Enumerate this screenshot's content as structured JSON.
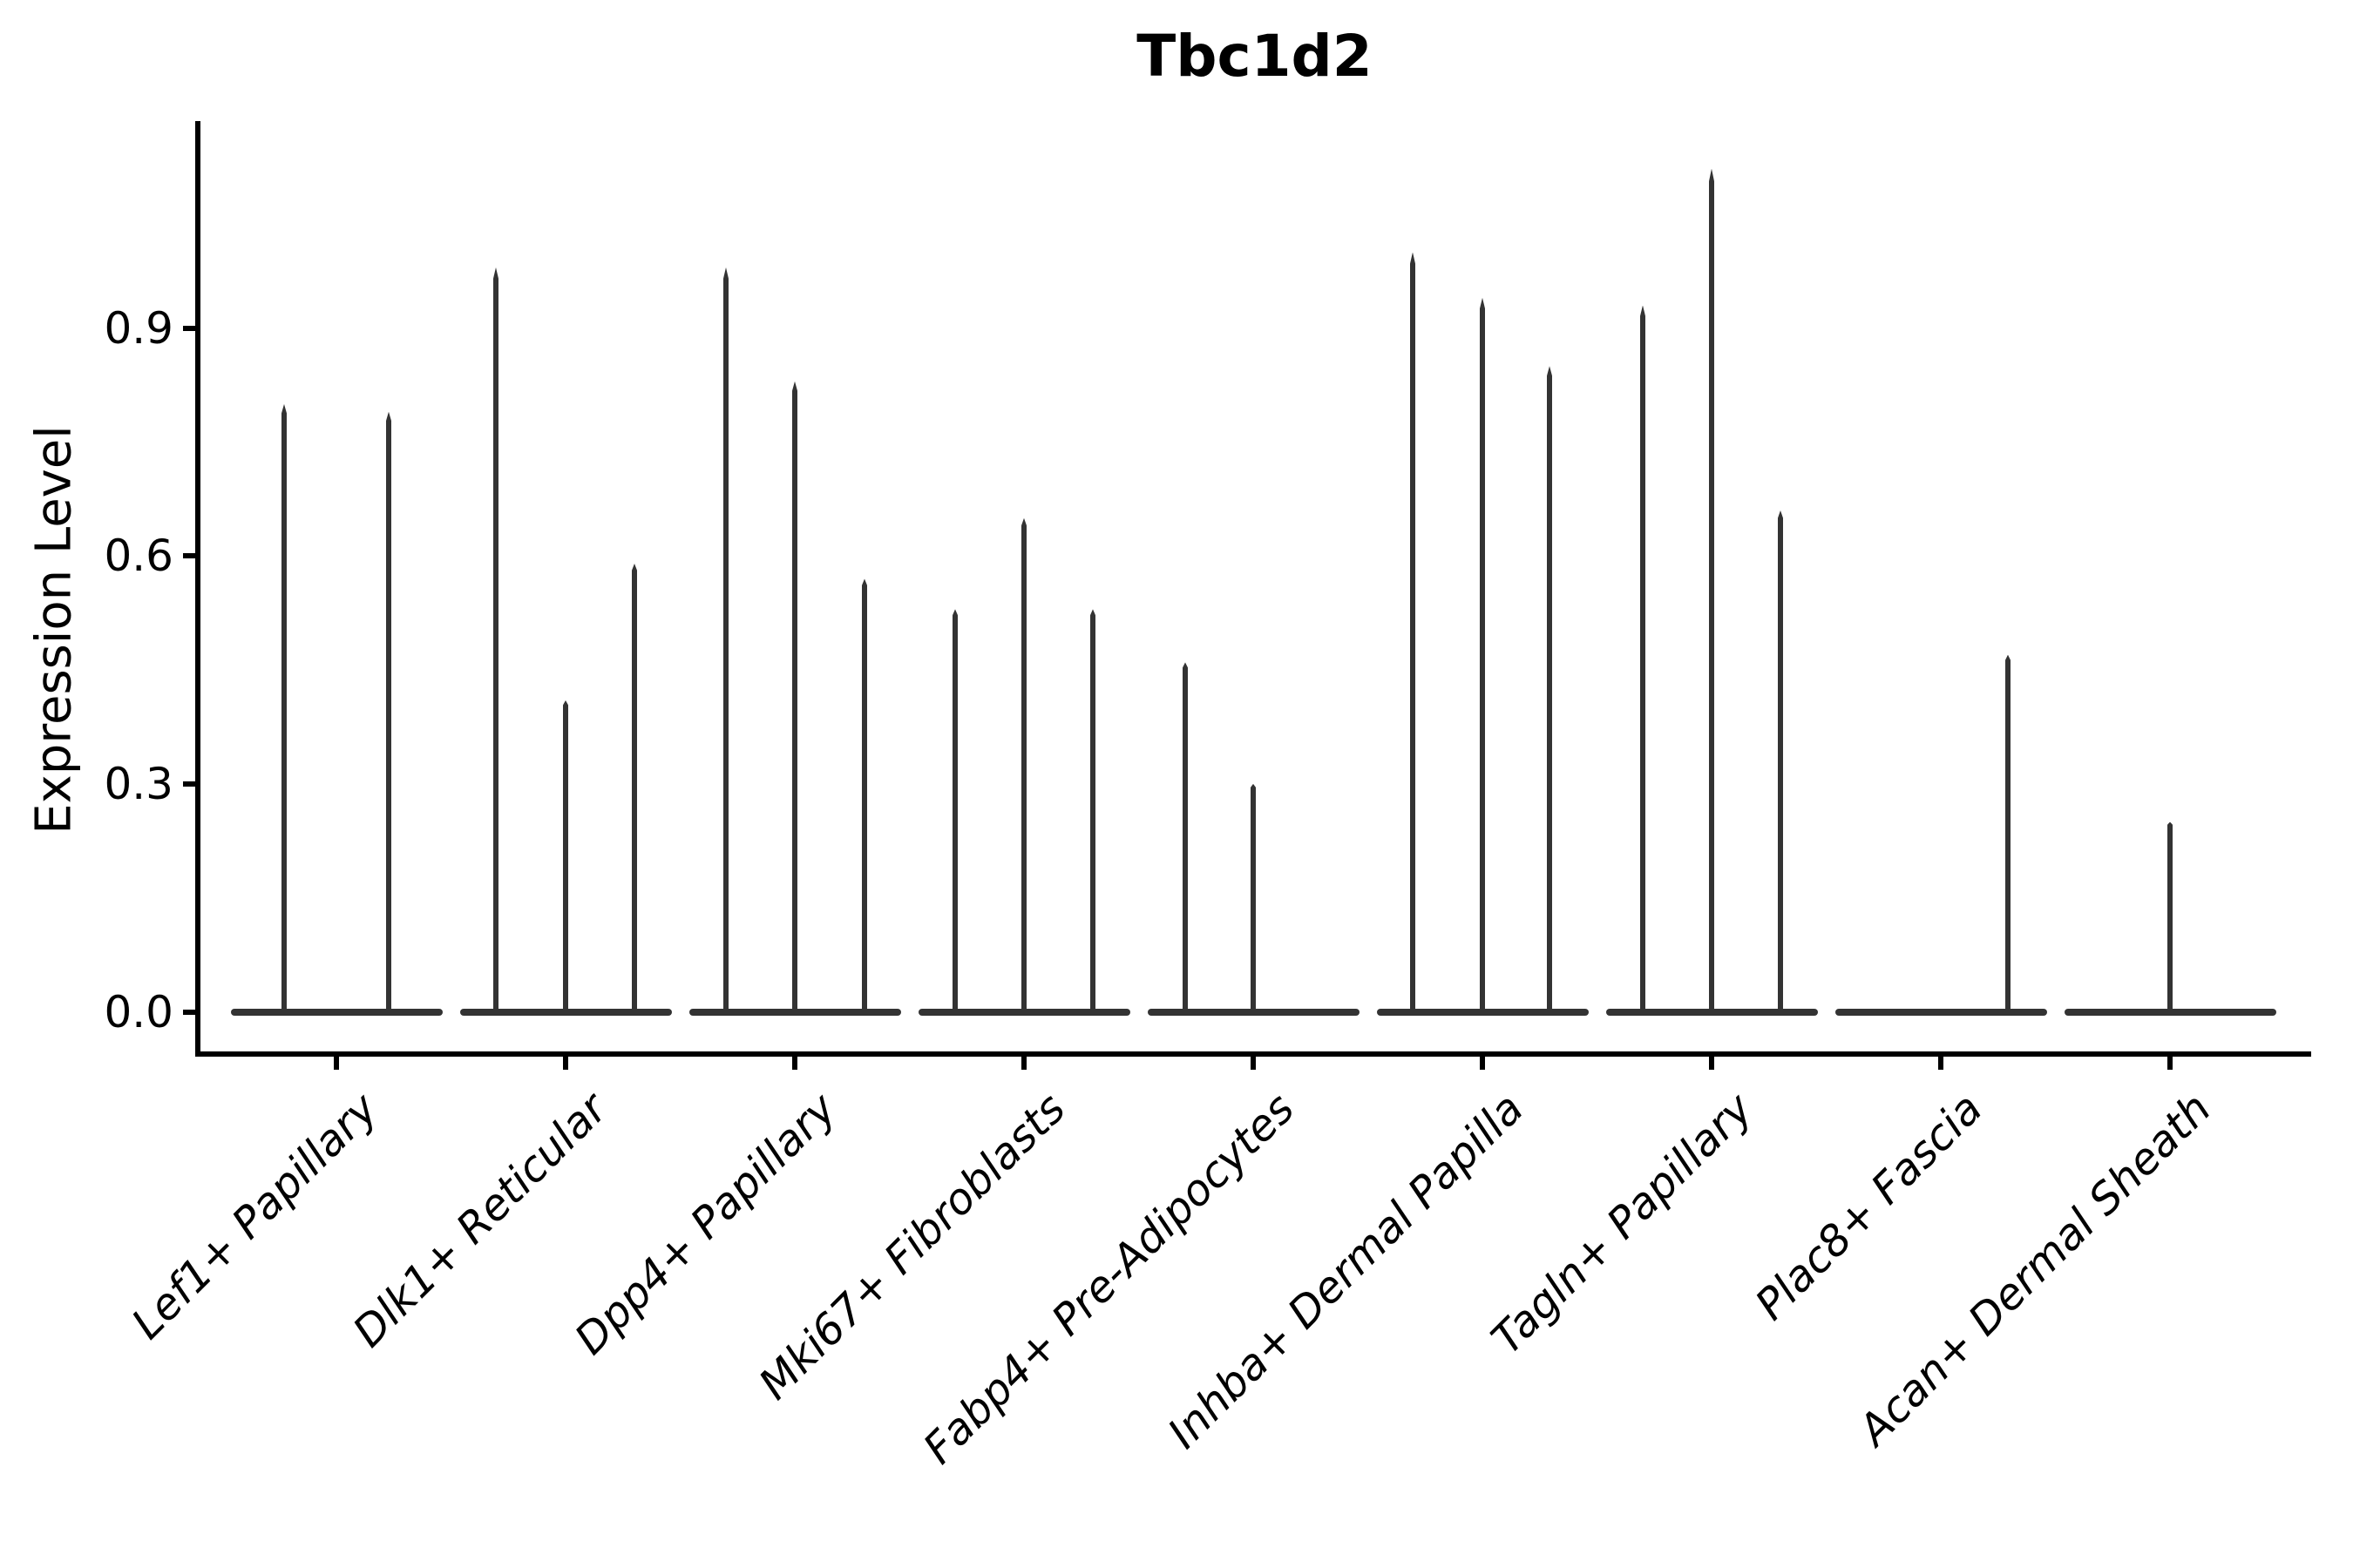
{
  "chart_data": {
    "type": "violin",
    "title": "Tbc1d2",
    "xlabel": "",
    "ylabel": "Expression Level",
    "ylim": [
      -0.056,
      1.17
    ],
    "yticks": [
      0.0,
      0.3,
      0.6,
      0.9
    ],
    "ytick_labels": [
      "0.0",
      "0.3",
      "0.6",
      "0.9"
    ],
    "grid": false,
    "legend": "none",
    "violin_color": "#333333",
    "axis_color": "#000000",
    "background_color": "#ffffff",
    "categories": [
      {
        "label": "Lef1+ Papillary",
        "violins": [
          {
            "dx": -60,
            "max": 0.8
          },
          {
            "dx": 60,
            "max": 0.79
          }
        ]
      },
      {
        "label": "Dlk1+ Reticular",
        "violins": [
          {
            "dx": -80,
            "max": 0.98
          },
          {
            "dx": 0,
            "max": 0.41
          },
          {
            "dx": 79,
            "max": 0.59
          }
        ]
      },
      {
        "label": "Dpp4+ Papillary",
        "violins": [
          {
            "dx": -79,
            "max": 0.98
          },
          {
            "dx": 0,
            "max": 0.83
          },
          {
            "dx": 80,
            "max": 0.57
          }
        ]
      },
      {
        "label": "Mki67+ Fibroblasts",
        "violins": [
          {
            "dx": -79,
            "max": 0.53
          },
          {
            "dx": 0,
            "max": 0.65
          },
          {
            "dx": 79,
            "max": 0.53
          }
        ]
      },
      {
        "label": "Fabp4+ Pre-Adipocytes",
        "violins": [
          {
            "dx": -78,
            "max": 0.46
          },
          {
            "dx": 0,
            "max": 0.3
          }
        ]
      },
      {
        "label": "Inhba+ Dermal Papilla",
        "violins": [
          {
            "dx": -80,
            "max": 1.0
          },
          {
            "dx": 0,
            "max": 0.94
          },
          {
            "dx": 77,
            "max": 0.85
          }
        ]
      },
      {
        "label": "Tagln+ Papillary",
        "violins": [
          {
            "dx": -79,
            "max": 0.93
          },
          {
            "dx": 0,
            "max": 1.11
          },
          {
            "dx": 79,
            "max": 0.66
          }
        ]
      },
      {
        "label": "Plac8+ Fascia",
        "violins": [
          {
            "dx": 77,
            "max": 0.47
          }
        ]
      },
      {
        "label": "Acan+ Dermal Sheath",
        "violins": [
          {
            "dx": 0,
            "max": 0.25
          }
        ]
      }
    ]
  }
}
